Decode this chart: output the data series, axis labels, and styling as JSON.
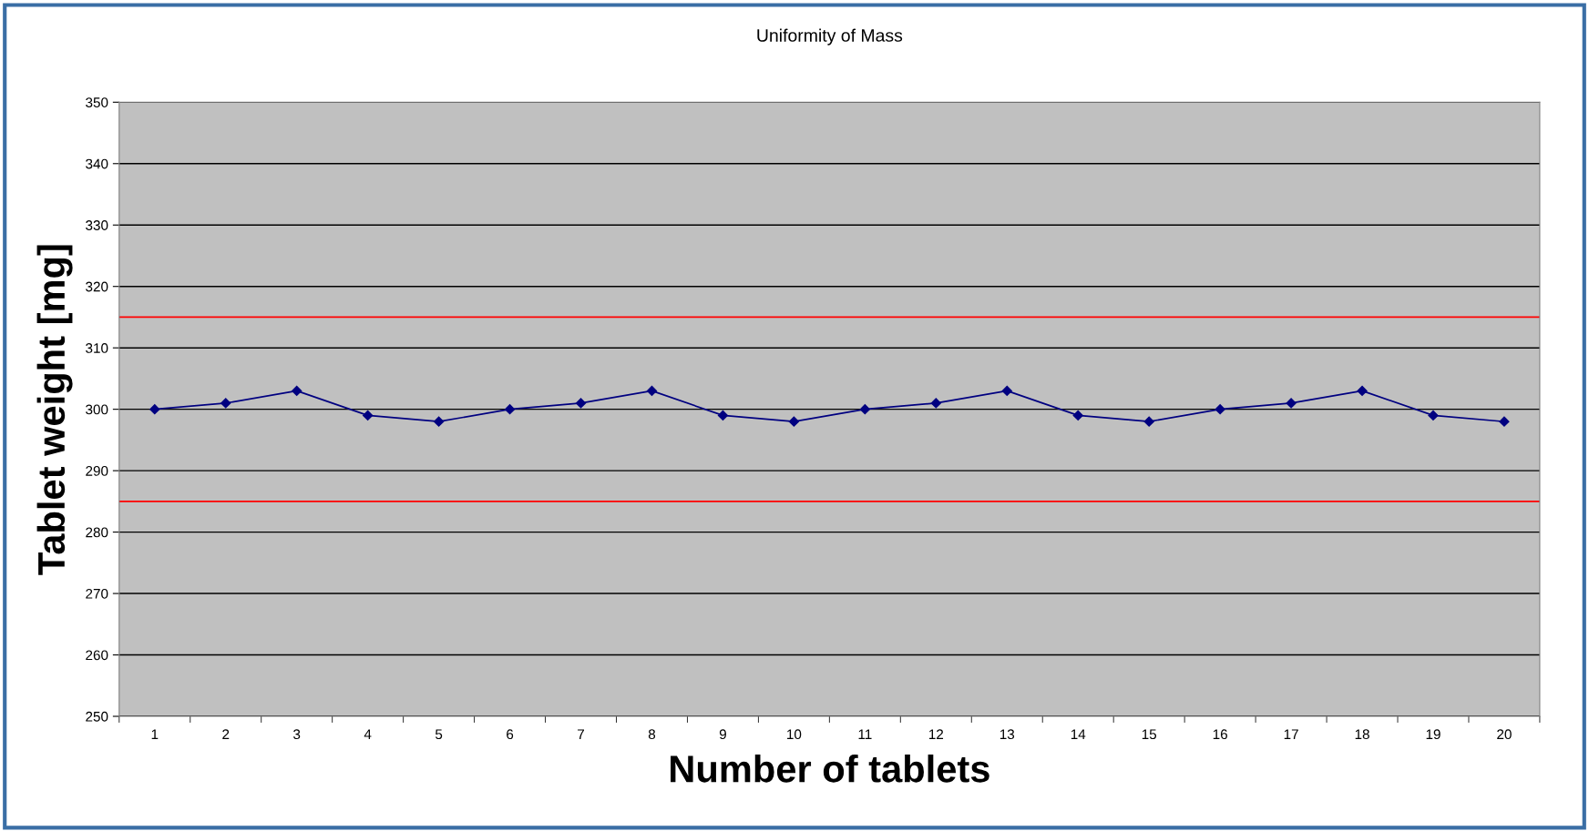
{
  "chart_data": {
    "type": "line",
    "title": "Uniformity of Mass",
    "xlabel": "Number of tablets",
    "ylabel": "Tablet weight [mg]",
    "categories": [
      "1",
      "2",
      "3",
      "4",
      "5",
      "6",
      "7",
      "8",
      "9",
      "10",
      "11",
      "12",
      "13",
      "14",
      "15",
      "16",
      "17",
      "18",
      "19",
      "20"
    ],
    "series": [
      {
        "color": "#000080",
        "values": [
          300,
          301,
          303,
          299,
          298,
          300,
          301,
          303,
          299,
          298,
          300,
          301,
          303,
          299,
          298,
          300,
          301,
          303,
          299,
          298
        ]
      }
    ],
    "ylim": [
      250,
      350
    ],
    "yticks": [
      250,
      260,
      270,
      280,
      290,
      300,
      310,
      320,
      330,
      340,
      350
    ],
    "ref_lines": [
      {
        "axis": "y",
        "value": 315,
        "color": "#ff0000"
      },
      {
        "axis": "y",
        "value": 285,
        "color": "#ff0000"
      }
    ],
    "grid": "y",
    "marker": "diamond",
    "line_style": "solid",
    "legend": false
  }
}
